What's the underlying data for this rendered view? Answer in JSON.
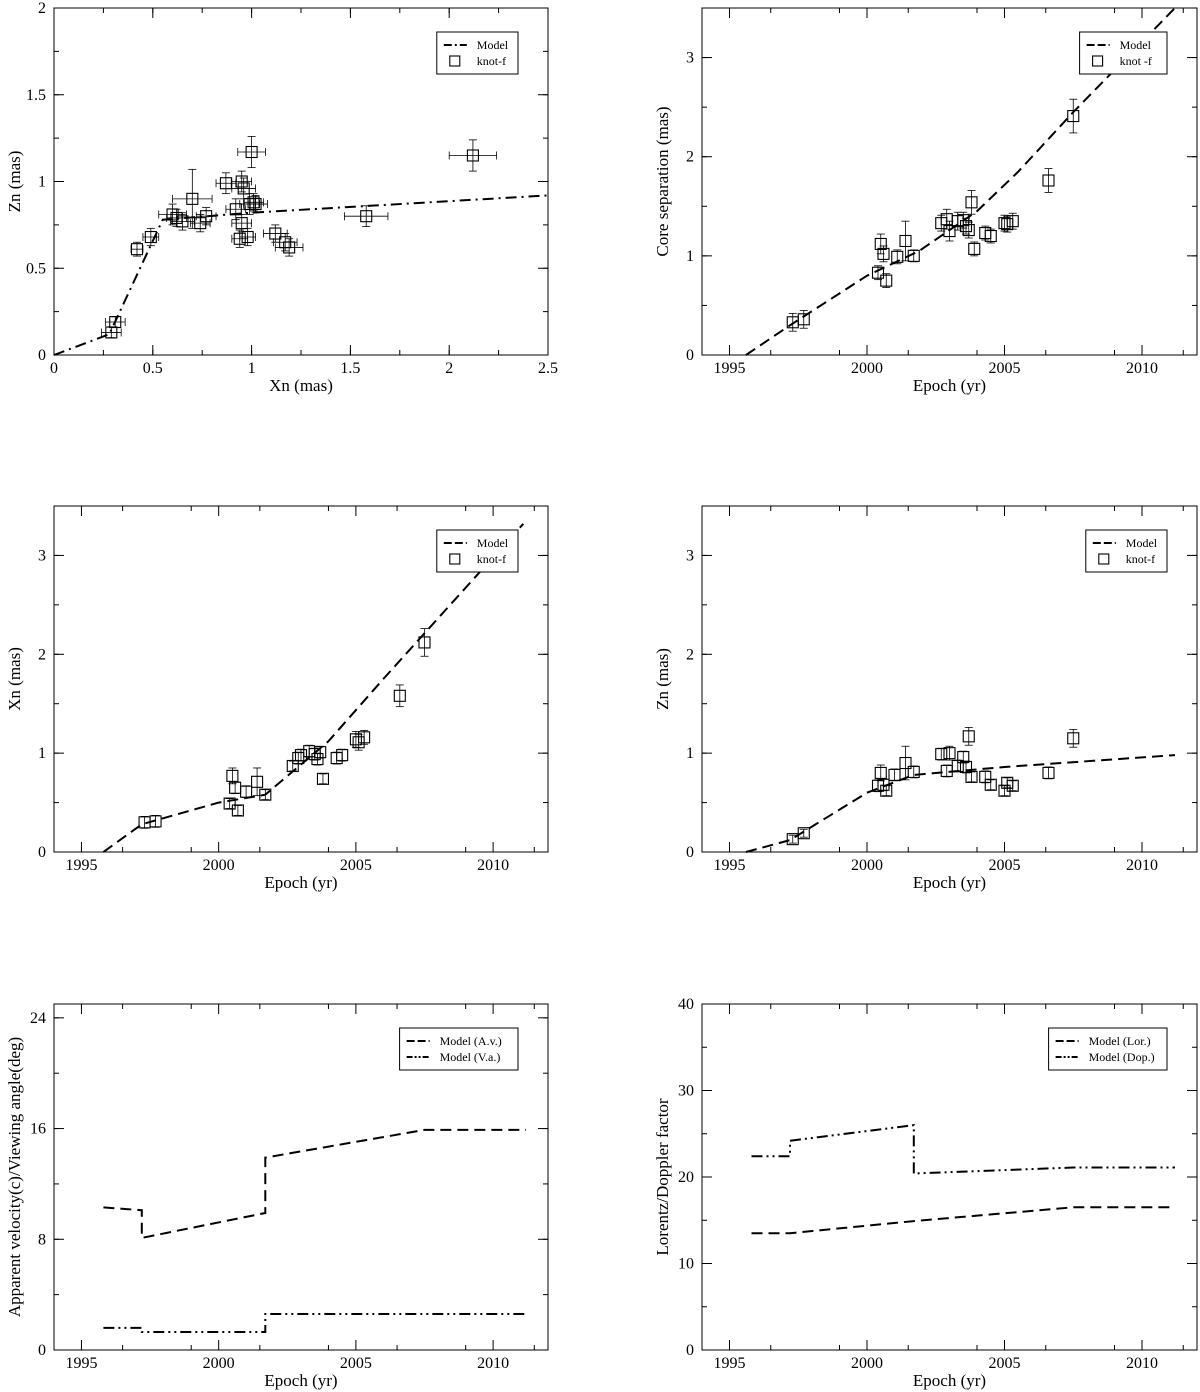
{
  "chart_data": [
    {
      "type": "scatter",
      "xlabel": "Xn (mas)",
      "ylabel": "Zn (mas)",
      "xlim": [
        0,
        2.5
      ],
      "ylim": [
        0,
        2
      ],
      "xticks": [
        0,
        0.5,
        1,
        1.5,
        2,
        2.5
      ],
      "xtick_labels": [
        "0",
        "0.5",
        "1",
        "1.5",
        "2",
        "2.5"
      ],
      "yticks": [
        0,
        0.5,
        1,
        1.5,
        2
      ],
      "ytick_labels": [
        "0",
        "0.5",
        "1",
        "1.5",
        "2"
      ],
      "legend_position": "top-right",
      "series": [
        {
          "name": "Model",
          "kind": "line",
          "dash": "dash-dot",
          "x": [
            0,
            0.28,
            0.55,
            1.0,
            2.5
          ],
          "y": [
            0,
            0.12,
            0.78,
            0.82,
            0.92
          ]
        },
        {
          "name": "knot-f",
          "kind": "markers",
          "x": [
            0.29,
            0.31,
            0.42,
            0.49,
            0.6,
            0.62,
            0.65,
            0.7,
            0.74,
            0.77,
            0.87,
            0.92,
            0.94,
            0.95,
            0.95,
            0.96,
            0.98,
            0.99,
            1.0,
            1.01,
            1.02,
            1.12,
            1.17,
            1.19,
            1.58,
            2.12
          ],
          "y": [
            0.13,
            0.19,
            0.61,
            0.68,
            0.81,
            0.79,
            0.77,
            0.9,
            0.76,
            0.8,
            0.99,
            0.84,
            0.67,
            1.0,
            0.76,
            0.96,
            0.68,
            0.87,
            1.17,
            0.88,
            0.87,
            0.7,
            0.65,
            0.62,
            0.8,
            1.15
          ],
          "xerr": [
            0.05,
            0.05,
            0.03,
            0.04,
            0.07,
            0.05,
            0.06,
            0.1,
            0.05,
            0.05,
            0.05,
            0.05,
            0.04,
            0.05,
            0.05,
            0.06,
            0.04,
            0.05,
            0.07,
            0.05,
            0.06,
            0.06,
            0.06,
            0.07,
            0.11,
            0.12
          ],
          "yerr": [
            0.03,
            0.03,
            0.04,
            0.05,
            0.06,
            0.05,
            0.05,
            0.17,
            0.05,
            0.05,
            0.06,
            0.06,
            0.05,
            0.06,
            0.05,
            0.06,
            0.05,
            0.06,
            0.09,
            0.05,
            0.05,
            0.05,
            0.05,
            0.05,
            0.06,
            0.09
          ]
        }
      ]
    },
    {
      "type": "scatter",
      "xlabel": "Epoch (yr)",
      "ylabel": "Core separation (mas)",
      "xlim": [
        1994,
        2012
      ],
      "ylim": [
        0,
        3.5
      ],
      "xticks": [
        1995,
        2000,
        2005,
        2010
      ],
      "xtick_labels": [
        "1995",
        "2000",
        "2005",
        "2010"
      ],
      "yticks": [
        0,
        1,
        2,
        3
      ],
      "ytick_labels": [
        "0",
        "1",
        "2",
        "3"
      ],
      "legend_position": "top-right",
      "series": [
        {
          "name": "Model",
          "kind": "line",
          "dash": "dash",
          "x": [
            1995.6,
            1997.2,
            2000.0,
            2001.9,
            2004.0,
            2005.5,
            2007.5,
            2011.2
          ],
          "y": [
            0,
            0.3,
            0.8,
            1.05,
            1.45,
            1.85,
            2.45,
            3.5
          ]
        },
        {
          "name": "knot -f",
          "kind": "markers",
          "x": [
            1997.3,
            1997.7,
            2000.4,
            2000.5,
            2000.6,
            2000.7,
            2001.1,
            2001.4,
            2001.7,
            2002.7,
            2002.9,
            2003.0,
            2003.3,
            2003.5,
            2003.6,
            2003.7,
            2003.8,
            2003.9,
            2004.3,
            2004.5,
            2005.0,
            2005.1,
            2005.3,
            2006.6,
            2007.5
          ],
          "y": [
            0.33,
            0.36,
            0.83,
            1.12,
            1.02,
            0.75,
            0.99,
            1.15,
            1.0,
            1.33,
            1.37,
            1.25,
            1.35,
            1.36,
            1.3,
            1.26,
            1.54,
            1.07,
            1.23,
            1.2,
            1.33,
            1.32,
            1.35,
            1.76,
            2.41
          ],
          "yerr": [
            0.09,
            0.09,
            0.07,
            0.1,
            0.08,
            0.07,
            0.07,
            0.2,
            0.06,
            0.08,
            0.1,
            0.1,
            0.09,
            0.08,
            0.08,
            0.08,
            0.12,
            0.07,
            0.07,
            0.07,
            0.08,
            0.08,
            0.08,
            0.12,
            0.17
          ]
        }
      ]
    },
    {
      "type": "scatter",
      "xlabel": "Epoch (yr)",
      "ylabel": "Xn (mas)",
      "xlim": [
        1994,
        2012
      ],
      "ylim": [
        0,
        3.5
      ],
      "xticks": [
        1995,
        2000,
        2005,
        2010
      ],
      "xtick_labels": [
        "1995",
        "2000",
        "2005",
        "2010"
      ],
      "yticks": [
        0,
        1,
        2,
        3
      ],
      "ytick_labels": [
        "0",
        "1",
        "2",
        "3"
      ],
      "legend_position": "top-right",
      "series": [
        {
          "name": "Model",
          "kind": "line",
          "dash": "dash",
          "x": [
            1995.8,
            1997.2,
            2000.0,
            2001.7,
            2004.0,
            2006.0,
            2011.1
          ],
          "y": [
            0,
            0.28,
            0.5,
            0.58,
            1.12,
            1.75,
            3.32
          ]
        },
        {
          "name": "knot-f",
          "kind": "markers",
          "x": [
            1997.3,
            1997.7,
            2000.4,
            2000.5,
            2000.6,
            2000.7,
            2001.0,
            2001.4,
            2001.7,
            2002.7,
            2002.9,
            2003.0,
            2003.3,
            2003.5,
            2003.6,
            2003.7,
            2003.8,
            2004.3,
            2004.5,
            2005.0,
            2005.1,
            2005.3,
            2006.6,
            2007.5
          ],
          "y": [
            0.3,
            0.31,
            0.49,
            0.77,
            0.65,
            0.42,
            0.61,
            0.71,
            0.58,
            0.87,
            0.95,
            0.98,
            1.02,
            0.99,
            0.94,
            1.01,
            0.74,
            0.95,
            0.98,
            1.14,
            1.11,
            1.16,
            1.58,
            2.12
          ],
          "yerr": [
            0.06,
            0.06,
            0.05,
            0.08,
            0.06,
            0.05,
            0.06,
            0.14,
            0.05,
            0.05,
            0.06,
            0.06,
            0.06,
            0.06,
            0.06,
            0.06,
            0.05,
            0.06,
            0.06,
            0.08,
            0.08,
            0.07,
            0.11,
            0.14
          ]
        }
      ]
    },
    {
      "type": "scatter",
      "xlabel": "Epoch (yr)",
      "ylabel": "Zn (mas)",
      "xlim": [
        1994,
        2012
      ],
      "ylim": [
        0,
        3.5
      ],
      "xticks": [
        1995,
        2000,
        2005,
        2010
      ],
      "xtick_labels": [
        "1995",
        "2000",
        "2005",
        "2010"
      ],
      "yticks": [
        0,
        1,
        2,
        3
      ],
      "ytick_labels": [
        "0",
        "1",
        "2",
        "3"
      ],
      "legend_position": "top-right",
      "series": [
        {
          "name": "Model",
          "kind": "line",
          "dash": "dash",
          "x": [
            1995.6,
            1997.2,
            2000.0,
            2001.7,
            2005.0,
            2011.2
          ],
          "y": [
            0,
            0.12,
            0.6,
            0.78,
            0.86,
            0.98
          ]
        },
        {
          "name": "knot-f",
          "kind": "markers",
          "x": [
            1997.3,
            1997.7,
            2000.4,
            2000.5,
            2000.6,
            2000.7,
            2001.0,
            2001.4,
            2001.7,
            2002.7,
            2002.9,
            2003.0,
            2003.3,
            2003.5,
            2003.6,
            2003.7,
            2003.8,
            2004.3,
            2004.5,
            2005.0,
            2005.1,
            2005.3,
            2006.6,
            2007.5
          ],
          "y": [
            0.13,
            0.19,
            0.67,
            0.8,
            0.68,
            0.62,
            0.78,
            0.9,
            0.81,
            0.99,
            0.82,
            1.0,
            0.87,
            0.96,
            0.86,
            1.17,
            0.76,
            0.76,
            0.68,
            0.62,
            0.7,
            0.67,
            0.8,
            1.15
          ],
          "yerr": [
            0.04,
            0.04,
            0.06,
            0.08,
            0.06,
            0.05,
            0.06,
            0.17,
            0.06,
            0.06,
            0.06,
            0.07,
            0.06,
            0.06,
            0.06,
            0.09,
            0.05,
            0.06,
            0.05,
            0.05,
            0.05,
            0.05,
            0.06,
            0.09
          ]
        }
      ]
    },
    {
      "type": "line",
      "xlabel": "Epoch (yr)",
      "ylabel": "Apparent velocity(c)/Viewing angle(deg)",
      "xlim": [
        1994,
        2012
      ],
      "ylim": [
        0,
        25
      ],
      "xticks": [
        1995,
        2000,
        2005,
        2010
      ],
      "xtick_labels": [
        "1995",
        "2000",
        "2005",
        "2010"
      ],
      "yticks": [
        0,
        8,
        16,
        24
      ],
      "ytick_labels": [
        "0",
        "8",
        "16",
        "24"
      ],
      "legend_position": "top-right",
      "series": [
        {
          "name": "Model (A.v.)",
          "kind": "line",
          "dash": "dash",
          "x": [
            1995.8,
            1997.2,
            1997.2,
            2001.7,
            2001.7,
            2007.5,
            2011.2
          ],
          "y": [
            10.3,
            10.1,
            8.1,
            9.9,
            13.9,
            15.9,
            15.9
          ]
        },
        {
          "name": "Model (V.a.)",
          "kind": "line",
          "dash": "dash-dot-dot",
          "x": [
            1995.8,
            1997.2,
            1997.2,
            2001.7,
            2001.7,
            2007.5,
            2011.2
          ],
          "y": [
            1.6,
            1.6,
            1.3,
            1.3,
            2.6,
            2.6,
            2.6
          ]
        }
      ]
    },
    {
      "type": "line",
      "xlabel": "Epoch (yr)",
      "ylabel": "Lorentz/Doppler factor",
      "xlim": [
        1994,
        2012
      ],
      "ylim": [
        0,
        40
      ],
      "xticks": [
        1995,
        2000,
        2005,
        2010
      ],
      "xtick_labels": [
        "1995",
        "2000",
        "2005",
        "2010"
      ],
      "yticks": [
        0,
        10,
        20,
        30,
        40
      ],
      "ytick_labels": [
        "0",
        "10",
        "20",
        "30",
        "40"
      ],
      "legend_position": "top-right",
      "series": [
        {
          "name": "Model (Lor.)",
          "kind": "line",
          "dash": "dash",
          "x": [
            1995.8,
            1997.2,
            2001.7,
            2007.5,
            2011.2
          ],
          "y": [
            13.5,
            13.5,
            14.9,
            16.5,
            16.5
          ]
        },
        {
          "name": "Model (Dop.)",
          "kind": "line",
          "dash": "dash-dot-dot",
          "x": [
            1995.8,
            1997.2,
            1997.2,
            2001.7,
            2001.7,
            2007.5,
            2011.2
          ],
          "y": [
            22.4,
            22.4,
            24.2,
            26.0,
            20.4,
            21.1,
            21.1
          ]
        }
      ]
    }
  ]
}
